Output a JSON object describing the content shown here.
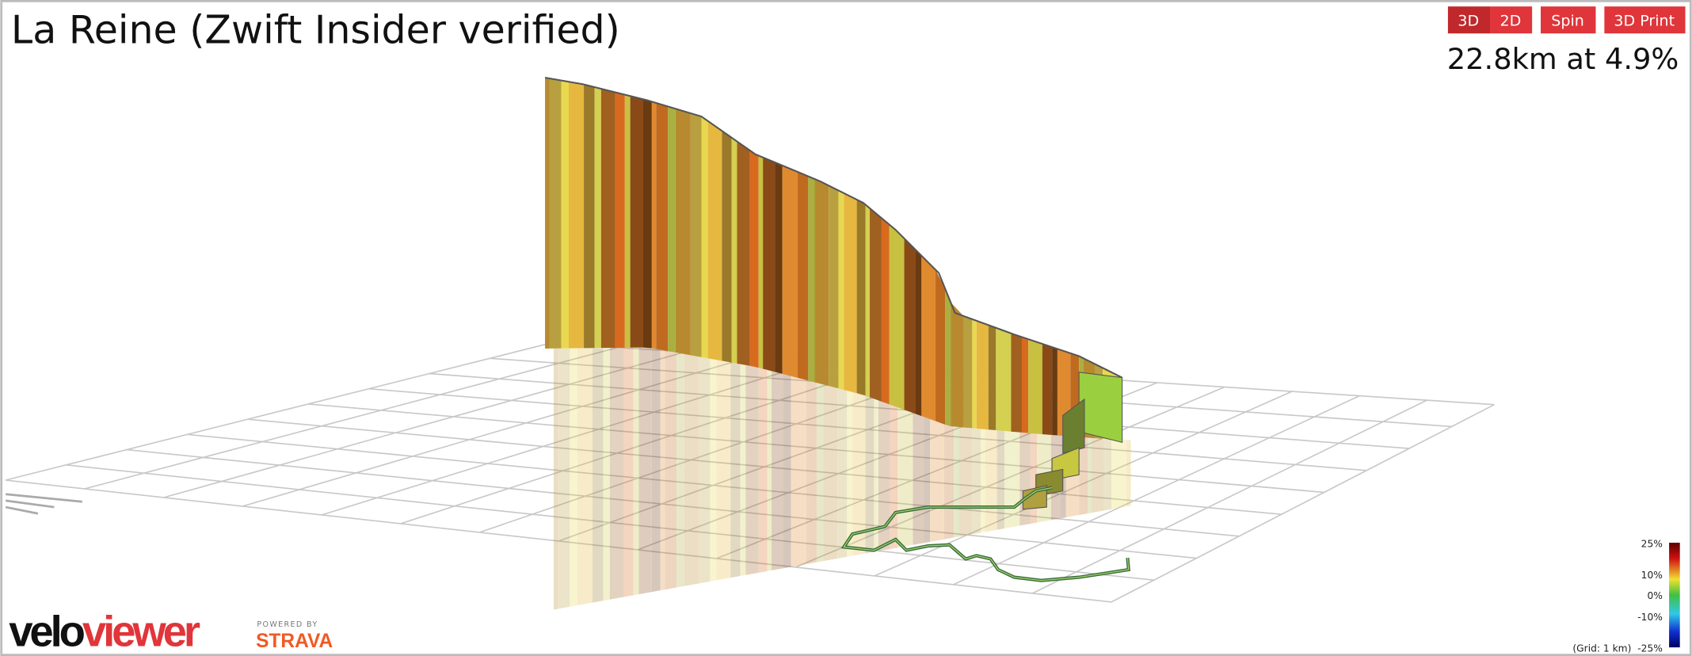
{
  "header": {
    "title": "La Reine (Zwift Insider verified)",
    "stats": "22.8km at 4.9%"
  },
  "buttons": [
    "3D",
    "2D",
    "Spin",
    "3D Print"
  ],
  "legend": {
    "labels": [
      "25%",
      "10%",
      "0%",
      "-10%",
      "-25%"
    ],
    "grid_note": "(Grid: 1 km)"
  },
  "footer": {
    "logo_part1": "velo",
    "logo_part2": "viewer",
    "powered_by": "POWERED BY",
    "strava": "STRAVA"
  }
}
